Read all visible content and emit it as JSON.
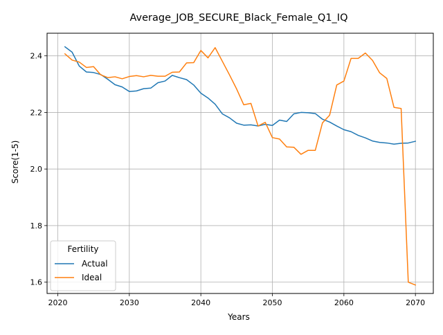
{
  "chart_data": {
    "type": "line",
    "title": "Average_JOB_SECURE_Black_Female_Q1_IQ",
    "xlabel": "Years",
    "ylabel": "Score(1-5)",
    "xlim": [
      2018.5,
      2072.5
    ],
    "ylim": [
      1.56,
      2.48
    ],
    "xticks": [
      2020,
      2030,
      2040,
      2050,
      2060,
      2070
    ],
    "yticks": [
      1.6,
      1.8,
      2.0,
      2.2,
      2.4
    ],
    "ytick_labels": [
      "1.6",
      "1.8",
      "2.0",
      "2.2",
      "2.4"
    ],
    "grid": true,
    "legend": {
      "title": "Fertility",
      "placement": "lower-left"
    },
    "x": [
      2021,
      2022,
      2023,
      2024,
      2025,
      2026,
      2027,
      2028,
      2029,
      2030,
      2031,
      2032,
      2033,
      2034,
      2035,
      2036,
      2037,
      2038,
      2039,
      2040,
      2041,
      2042,
      2043,
      2044,
      2045,
      2046,
      2047,
      2048,
      2049,
      2050,
      2051,
      2052,
      2053,
      2054,
      2055,
      2056,
      2057,
      2058,
      2059,
      2060,
      2061,
      2062,
      2063,
      2064,
      2065,
      2066,
      2067,
      2068,
      2069,
      2070
    ],
    "series": [
      {
        "name": "Actual",
        "color": "#1f77b4",
        "values": [
          2.432,
          2.413,
          2.364,
          2.343,
          2.341,
          2.334,
          2.317,
          2.298,
          2.29,
          2.274,
          2.276,
          2.284,
          2.286,
          2.305,
          2.311,
          2.331,
          2.323,
          2.316,
          2.297,
          2.268,
          2.251,
          2.229,
          2.195,
          2.181,
          2.162,
          2.155,
          2.156,
          2.152,
          2.158,
          2.154,
          2.173,
          2.168,
          2.195,
          2.2,
          2.199,
          2.196,
          2.176,
          2.166,
          2.152,
          2.139,
          2.132,
          2.119,
          2.11,
          2.099,
          2.094,
          2.092,
          2.088,
          2.091,
          2.092,
          2.098
        ]
      },
      {
        "name": "Ideal",
        "color": "#ff7f0e",
        "values": [
          2.407,
          2.385,
          2.378,
          2.359,
          2.362,
          2.333,
          2.323,
          2.326,
          2.319,
          2.327,
          2.33,
          2.326,
          2.331,
          2.328,
          2.328,
          2.342,
          2.343,
          2.375,
          2.376,
          2.419,
          2.393,
          2.429,
          2.381,
          2.333,
          2.283,
          2.227,
          2.232,
          2.152,
          2.165,
          2.111,
          2.106,
          2.078,
          2.077,
          2.052,
          2.066,
          2.066,
          2.163,
          2.19,
          2.297,
          2.311,
          2.391,
          2.391,
          2.41,
          2.384,
          2.34,
          2.32,
          2.218,
          2.214,
          1.6,
          1.59
        ]
      }
    ]
  }
}
